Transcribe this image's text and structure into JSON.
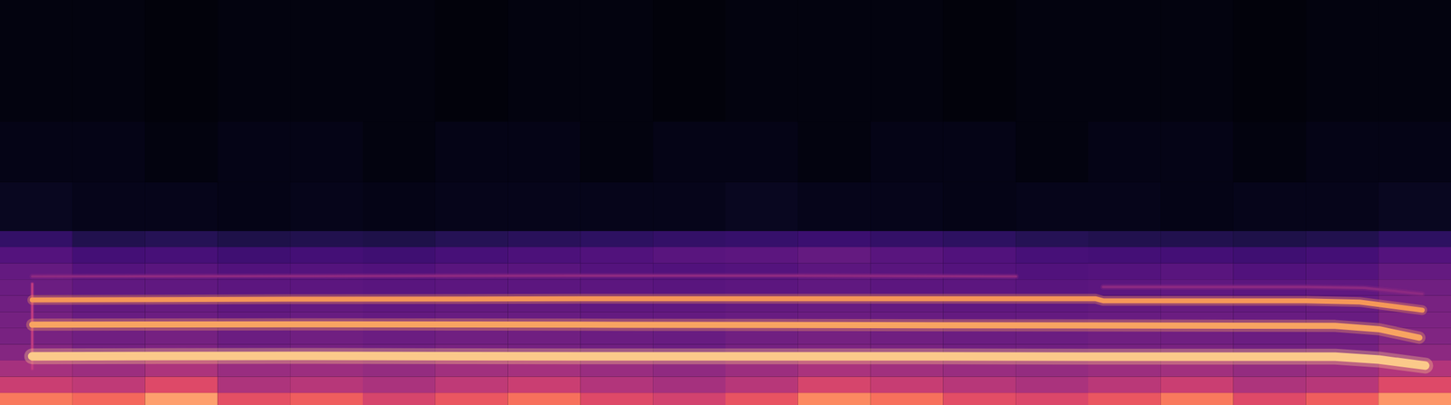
{
  "chart_data": {
    "type": "heatmap",
    "tick_labels": false,
    "xlim": [
      0,
      100
    ],
    "ylim": [
      0,
      100
    ],
    "clim": [
      0,
      100
    ],
    "x_edges": [
      0,
      5,
      10,
      15,
      20,
      25,
      30,
      35,
      40,
      45,
      50,
      55,
      60,
      65,
      70,
      75,
      80,
      85,
      90,
      95,
      100
    ],
    "y_edges": [
      0,
      3,
      7,
      11,
      15,
      19,
      23,
      27,
      31,
      35,
      39,
      43,
      55,
      70,
      100
    ],
    "cells": [
      [
        72,
        68,
        80,
        62,
        66,
        58,
        64,
        70,
        60,
        57,
        63,
        75,
        70,
        61,
        59,
        64,
        72,
        60,
        66,
        78
      ],
      [
        55,
        52,
        60,
        48,
        50,
        47,
        52,
        55,
        49,
        46,
        50,
        58,
        54,
        50,
        47,
        51,
        55,
        48,
        50,
        60
      ],
      [
        46,
        44,
        48,
        43,
        44,
        42,
        45,
        46,
        43,
        41,
        44,
        47,
        45,
        43,
        42,
        44,
        45,
        42,
        44,
        49
      ],
      [
        38,
        34,
        36,
        33,
        34,
        33,
        35,
        34,
        33,
        32,
        34,
        36,
        35,
        33,
        33,
        34,
        35,
        33,
        34,
        40
      ],
      [
        35,
        33,
        34,
        32,
        33,
        32,
        33,
        33,
        32,
        31,
        33,
        34,
        33,
        32,
        32,
        33,
        33,
        32,
        33,
        37
      ],
      [
        34,
        31,
        32,
        30,
        31,
        30,
        31,
        31,
        30,
        30,
        31,
        32,
        31,
        30,
        30,
        31,
        32,
        31,
        31,
        36
      ],
      [
        33,
        30,
        31,
        29,
        30,
        29,
        30,
        30,
        29,
        29,
        30,
        31,
        30,
        29,
        29,
        30,
        31,
        30,
        31,
        35
      ],
      [
        32,
        29,
        29,
        28,
        28,
        27,
        28,
        28,
        28,
        27,
        28,
        29,
        28,
        28,
        27,
        28,
        29,
        28,
        29,
        33
      ],
      [
        30,
        26,
        27,
        25,
        26,
        25,
        27,
        27,
        26,
        25,
        26,
        28,
        27,
        26,
        25,
        26,
        27,
        25,
        26,
        30
      ],
      [
        26,
        22,
        23,
        21,
        22,
        21,
        23,
        24,
        25,
        27,
        28,
        30,
        27,
        25,
        23,
        22,
        22,
        21,
        22,
        26
      ],
      [
        18,
        14,
        15,
        13,
        14,
        13,
        15,
        16,
        17,
        18,
        19,
        20,
        18,
        17,
        15,
        14,
        14,
        13,
        14,
        17
      ],
      [
        6,
        5,
        5,
        4,
        5,
        4,
        5,
        5,
        5,
        5,
        6,
        5,
        5,
        4,
        5,
        5,
        4,
        5,
        5,
        6
      ],
      [
        4,
        4,
        3,
        4,
        4,
        3,
        4,
        4,
        3,
        4,
        4,
        3,
        4,
        4,
        3,
        4,
        4,
        3,
        4,
        4
      ],
      [
        3,
        3,
        2,
        3,
        3,
        3,
        2,
        3,
        3,
        2,
        3,
        3,
        3,
        2,
        3,
        3,
        3,
        2,
        3,
        3
      ]
    ],
    "series": [
      {
        "color": "#c33d80",
        "x": [
          2.2,
          2.2
        ],
        "values": [
          9,
          30
        ]
      },
      {
        "color": "#8c2981",
        "x": [
          2.2,
          20,
          40,
          55,
          70,
          72,
          76,
          90,
          94,
          98
        ],
        "values": [
          31.8,
          31.9,
          32.0,
          32.0,
          31.8,
          null,
          29.2,
          29.2,
          29.0,
          27.5
        ]
      },
      {
        "color": "#f59758",
        "x": [
          2.2,
          20,
          40,
          60,
          75.5,
          76,
          90,
          93.7,
          98
        ],
        "values": [
          26.0,
          26.2,
          26.3,
          26.3,
          26.3,
          25.8,
          25.8,
          25.5,
          23.5
        ]
      },
      {
        "color": "#f8a461",
        "x": [
          2.2,
          20,
          40,
          60,
          80,
          92,
          95,
          97.8
        ],
        "values": [
          19.9,
          20.0,
          19.9,
          19.8,
          19.7,
          19.6,
          18.8,
          16.7
        ]
      },
      {
        "color": "#fbc98a",
        "x": [
          2.2,
          20,
          40,
          60,
          80,
          92,
          95,
          98.2
        ],
        "values": [
          12.1,
          12.2,
          12.1,
          12.1,
          12.0,
          12.0,
          11.3,
          9.8
        ]
      }
    ]
  }
}
